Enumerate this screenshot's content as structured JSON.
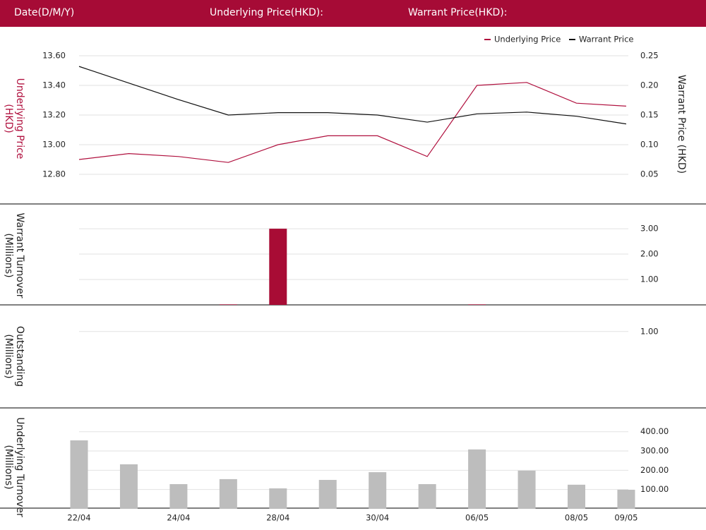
{
  "header": {
    "date": "Date(D/M/Y)",
    "underlying": "Underlying Price(HKD):",
    "warrant": "Warrant Price(HKD):"
  },
  "chart_data": [
    {
      "type": "line",
      "y_title": "Underlying Price (HKD)",
      "y2_title": "Warrant  Price (HKD)",
      "ylim": [
        12.7,
        13.6
      ],
      "yticks": [
        {
          "value": 12.8,
          "label": "12.80"
        },
        {
          "value": 13.0,
          "label": "13.00"
        },
        {
          "value": 13.2,
          "label": "13.20"
        },
        {
          "value": 13.4,
          "label": "13.40"
        },
        {
          "value": 13.6,
          "label": "13.60"
        }
      ],
      "y2lim": [
        0.025,
        0.25
      ],
      "y2ticks": [
        {
          "value": 0.05,
          "label": "0.05"
        },
        {
          "value": 0.1,
          "label": "0.10"
        },
        {
          "value": 0.15,
          "label": "0.15"
        },
        {
          "value": 0.2,
          "label": "0.20"
        },
        {
          "value": 0.25,
          "label": "0.25"
        }
      ],
      "grid": true,
      "series": [
        {
          "name": "Underlying Price",
          "color": "#b0103e",
          "values": [
            12.9,
            12.94,
            12.92,
            12.88,
            13.0,
            13.06,
            13.06,
            12.92,
            13.4,
            13.42,
            13.28,
            13.26
          ]
        },
        {
          "name": "Warrant Price",
          "color": "#111111",
          "axis": "y2",
          "values": [
            0.232,
            0.204,
            0.176,
            0.15,
            0.154,
            0.154,
            0.15,
            0.138,
            0.152,
            0.155,
            0.148,
            0.135
          ]
        }
      ]
    },
    {
      "type": "bar",
      "y_title": "Warrant  Turnover (Millions)",
      "axis": "y2",
      "color": "#a80c35",
      "y2lim": [
        0,
        3.78
      ],
      "y2ticks": [
        {
          "value": 1,
          "label": "1.00"
        },
        {
          "value": 2,
          "label": "2.00"
        },
        {
          "value": 3,
          "label": "3.00"
        }
      ],
      "grid": true,
      "values": [
        0,
        0,
        0,
        0.02,
        3.0,
        0,
        0,
        0,
        0.02,
        0,
        0,
        0
      ]
    },
    {
      "type": "bar",
      "y_title": "Outstanding (Millions)",
      "axis": "y2",
      "color": "#a80c35",
      "y2lim": [
        0,
        1.34
      ],
      "y2ticks": [
        {
          "value": 1,
          "label": "1.00"
        }
      ],
      "grid": true,
      "values": [
        0,
        0,
        0,
        0,
        0,
        0,
        0,
        0,
        0,
        0,
        0,
        0
      ]
    },
    {
      "type": "bar",
      "y_title": "Underlying Turnover (Millions)",
      "axis": "y2",
      "color": "#bdbdbd",
      "y2lim": [
        0,
        516
      ],
      "y2ticks": [
        {
          "value": 100,
          "label": "100.00"
        },
        {
          "value": 200,
          "label": "200.00"
        },
        {
          "value": 300,
          "label": "300.00"
        },
        {
          "value": 400,
          "label": "400.00"
        }
      ],
      "grid": true,
      "categories": [
        "22/04",
        null,
        "24/04",
        null,
        "28/04",
        null,
        "30/04",
        null,
        "06/05",
        null,
        "08/05",
        "09/05"
      ],
      "values": [
        355,
        231,
        128,
        154,
        106,
        150,
        190,
        128,
        308,
        198,
        125,
        99
      ]
    }
  ]
}
